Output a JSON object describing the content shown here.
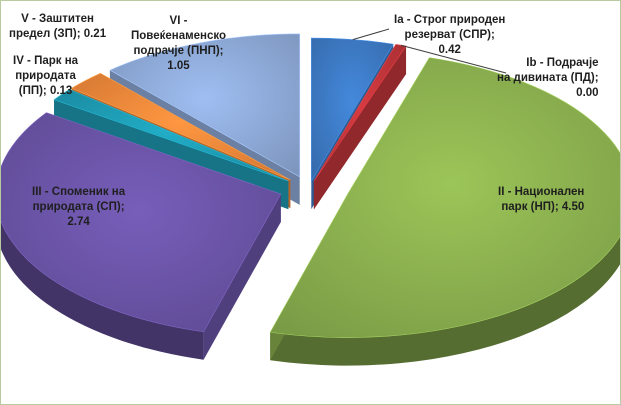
{
  "chart_data": {
    "type": "pie",
    "style": "exploded 3D",
    "legend": "none",
    "categories": [
      "Ia - Строг природен резерват (СПР)",
      "Ib - Подрачје на дивината (ПД)",
      "II - Национален парк (НП)",
      "III - Споменик на природата (СП)",
      "IV - Парк на природата (ПП)",
      "V - Заштитен предел (ЗП)",
      "VI - Повеќенаменско подрачје (ПНП)"
    ],
    "values": [
      0.42,
      0.0,
      4.5,
      2.74,
      0.13,
      0.21,
      1.05
    ],
    "colors": [
      "#3d7ac4",
      "#c0353a",
      "#8bb04f",
      "#6a54a6",
      "#1e9bb3",
      "#f0873a",
      "#8eaad8"
    ],
    "labels": [
      "Ia - Строг природен\nрезерват (СПР);\n0.42",
      "Ib - Подрачје\nна дивината  (ПД);\n0.00",
      "II - Национален\nпарк (НП); 4.50",
      "III - Споменик на\nприродата (СП);\n2.74",
      "IV - Парк на\nприродата\n(ПП); 0.13",
      "V - Заштитен\nпредел (ЗП); 0.21",
      "VI -\nПовеќенаменско\nподрачје (ПНП);\n1.05"
    ]
  }
}
